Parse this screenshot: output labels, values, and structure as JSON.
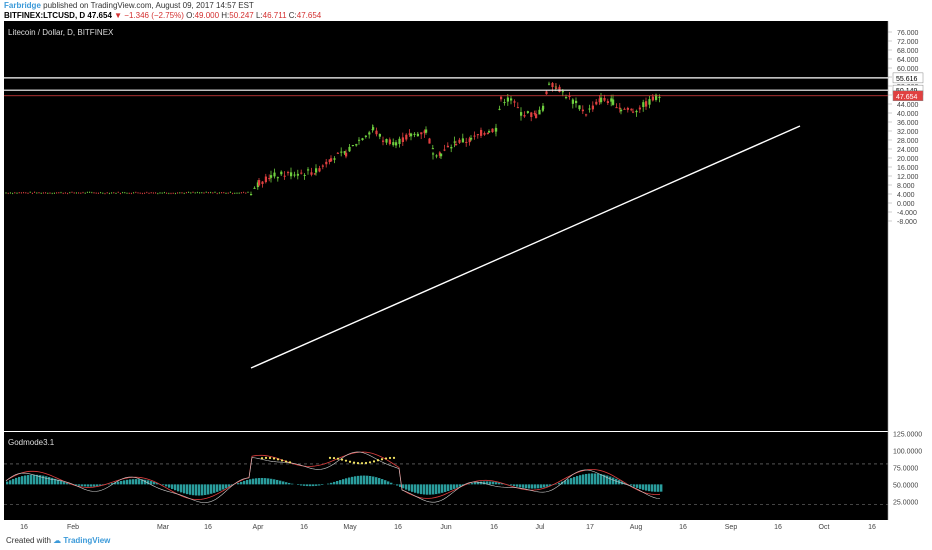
{
  "header": {
    "author": "Farbridge",
    "published_text": " published on TradingView.com, August 09, 2017 14:57 EST",
    "symbol": "BITFINEX:LTCUSD, D",
    "last": "47.654",
    "change_arrow": "▼",
    "change": "−1.346 (−2.75%)",
    "o_label": "O:",
    "o_value": "49.000",
    "h_label": "H:",
    "h_value": "50.247",
    "l_label": "L:",
    "l_value": "46.711",
    "c_label": "C:",
    "c_value": "47.654"
  },
  "chart": {
    "title": "Litecoin / Dollar, D, BITFINEX",
    "background": "#000000",
    "up_color": "#6fcf3f",
    "down_color": "#e04040",
    "price_axis": [
      "76.000",
      "72.000",
      "68.000",
      "64.000",
      "60.000",
      "56.000",
      "52.000",
      "48.000",
      "44.000",
      "40.000",
      "36.000",
      "32.000",
      "28.000",
      "24.000",
      "20.000",
      "16.000",
      "12.000",
      "8.000",
      "4.000",
      "0.000",
      "-4.000",
      "-8.000"
    ],
    "price_tags": [
      {
        "value": "55.616",
        "price": 55.616,
        "bg": "#ffffff",
        "fg": "#000000"
      },
      {
        "value": "50.149",
        "price": 50.149,
        "bg": "#ffffff",
        "fg": "#000000"
      },
      {
        "value": "47.654",
        "price": 47.654,
        "bg": "#e04040",
        "fg": "#ffffff"
      }
    ],
    "time_axis": [
      "16",
      "Feb",
      "Mar",
      "16",
      "Apr",
      "16",
      "May",
      "16",
      "Jun",
      "16",
      "Jul",
      "17",
      "Aug",
      "16",
      "Sep",
      "16",
      "Oct",
      "16"
    ]
  },
  "indicator": {
    "name": "Godmode3.1",
    "axis": [
      "125.0000",
      "100.0000",
      "75.0000",
      "50.0000",
      "25.0000"
    ],
    "levels": [
      80,
      20
    ],
    "colors": {
      "line1": "#e04040",
      "line2": "#cccccc",
      "histogram": "#2a9d9d",
      "dots": "#f5e663"
    }
  },
  "footer": {
    "created_with": "Created with",
    "brand": "TradingView"
  }
}
